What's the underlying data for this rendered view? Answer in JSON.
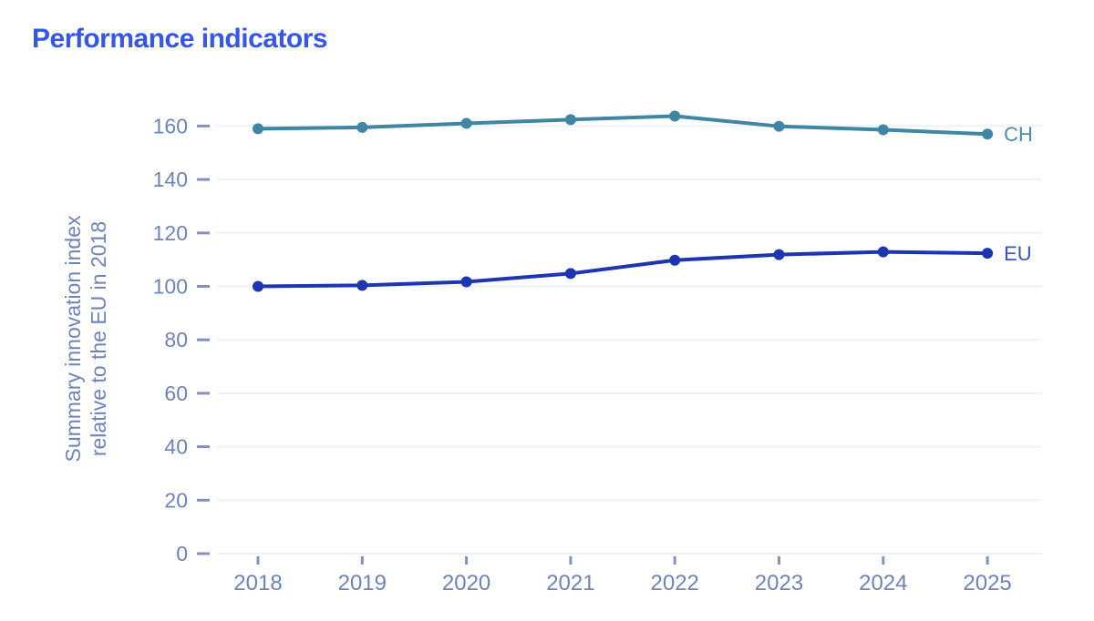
{
  "page_title": "Performance indicators",
  "colors": {
    "title": "#3457ea",
    "axis_text": "#6e83ba",
    "tick_mark": "#8091c4",
    "grid": "#eef0fa",
    "background": "#ffffff",
    "ch_line": "#3e86a3",
    "ch_label": "#4f8ca8",
    "eu_line": "#1e35b2",
    "eu_label": "#3a52c8"
  },
  "chart_data": {
    "type": "line",
    "title": "Performance indicators",
    "ylabel": "Summary innovation index relative to the EU in 2018",
    "ylabel_lines": [
      "Summary innovation index",
      "relative to the EU in 2018"
    ],
    "xlabel": "",
    "categories": [
      "2018",
      "2019",
      "2020",
      "2021",
      "2022",
      "2023",
      "2024",
      "2025"
    ],
    "ylim": [
      0,
      160
    ],
    "ytick_step": 20,
    "yticks": [
      0,
      20,
      40,
      60,
      80,
      100,
      120,
      140,
      160
    ],
    "grid": true,
    "legend_position": "line-end-labels",
    "series": [
      {
        "name": "CH",
        "color": "#3e86a3",
        "label_color": "#4f8ca8",
        "values": [
          159.0,
          159.5,
          161.0,
          162.4,
          163.7,
          159.9,
          158.6,
          157.0
        ]
      },
      {
        "name": "EU",
        "color": "#1e35b2",
        "label_color": "#3a52c8",
        "values": [
          100.0,
          100.4,
          101.7,
          104.8,
          109.8,
          111.9,
          112.9,
          112.4
        ]
      }
    ]
  }
}
